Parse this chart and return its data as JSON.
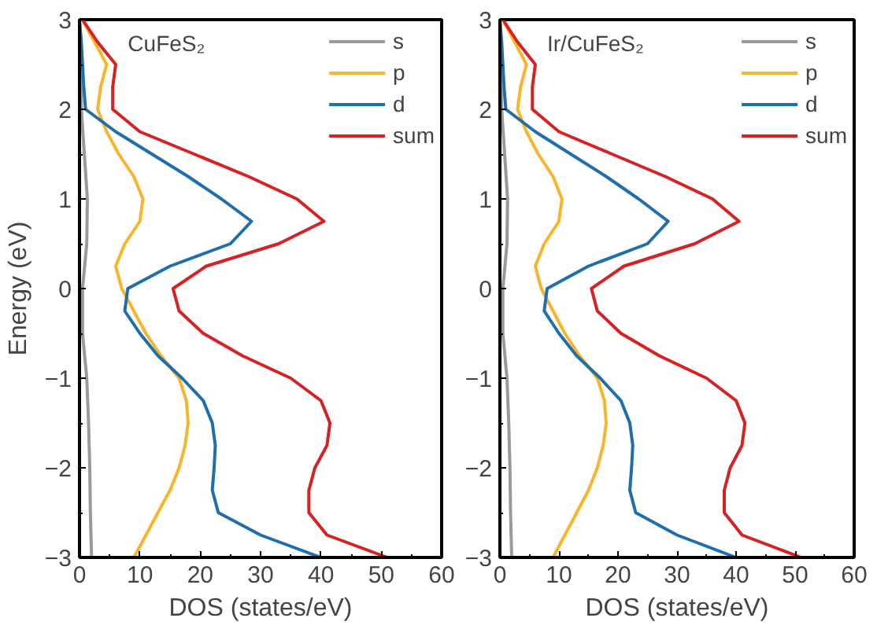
{
  "chart_data": [
    {
      "type": "line",
      "xlabel": "DOS (states/eV)",
      "ylabel": "Energy (eV)",
      "annotations": [
        "CuFeS₂"
      ],
      "xlim": [
        0,
        60
      ],
      "xticks": [
        0,
        10,
        20,
        30,
        40,
        50,
        60
      ],
      "ylim": [
        -3,
        3
      ],
      "yticks": [
        3,
        2,
        1,
        0,
        -1,
        -2,
        -3
      ],
      "legend": "top right",
      "grid": false,
      "series": [
        {
          "name": "s",
          "color": "#9a9a9a",
          "x": [
            0,
            0.3,
            0.8,
            1.3,
            1.2,
            0.5,
            0.5,
            1.2,
            1.5,
            1.7,
            1.8,
            2
          ],
          "values": [
            3,
            2,
            1.5,
            1,
            0.5,
            0,
            -0.5,
            -1,
            -1.5,
            -2,
            -2.5,
            -3
          ]
        },
        {
          "name": "p",
          "color": "#f7b52c",
          "x": [
            0.5,
            2.5,
            4.5,
            3.5,
            3,
            4.5,
            6.5,
            9,
            10.5,
            10,
            7.5,
            6,
            7,
            9,
            11,
            13.5,
            16.5,
            17.7,
            18,
            17.5,
            16.5,
            15,
            13,
            11,
            9
          ],
          "values": [
            3,
            2.75,
            2.5,
            2.25,
            2,
            1.75,
            1.5,
            1.25,
            1,
            0.75,
            0.5,
            0.25,
            0,
            -0.25,
            -0.5,
            -0.75,
            -1,
            -1.25,
            -1.5,
            -1.75,
            -2,
            -2.25,
            -2.5,
            -2.75,
            -3
          ]
        },
        {
          "name": "d",
          "color": "#1f6fad",
          "x": [
            0,
            0.3,
            0.5,
            0.7,
            1,
            6,
            12,
            18,
            23.5,
            28.5,
            25,
            15,
            8,
            7.5,
            10,
            13,
            17,
            20.5,
            22,
            22.5,
            22.3,
            22,
            23,
            30,
            40
          ],
          "values": [
            3,
            2.75,
            2.5,
            2.25,
            2,
            1.75,
            1.5,
            1.25,
            1,
            0.75,
            0.5,
            0.25,
            0,
            -0.25,
            -0.5,
            -0.75,
            -1,
            -1.25,
            -1.5,
            -1.75,
            -2,
            -2.25,
            -2.5,
            -2.75,
            -3
          ]
        },
        {
          "name": "sum",
          "color": "#d62222",
          "x": [
            0.5,
            3,
            6,
            5.5,
            5.5,
            10,
            19,
            28,
            36,
            40.5,
            33,
            21,
            15.5,
            16.5,
            20.5,
            27,
            35,
            40,
            41.5,
            41,
            39,
            38,
            38,
            41,
            51
          ],
          "values": [
            3,
            2.75,
            2.5,
            2.25,
            2,
            1.75,
            1.5,
            1.25,
            1,
            0.75,
            0.5,
            0.25,
            0,
            -0.25,
            -0.5,
            -0.75,
            -1,
            -1.25,
            -1.5,
            -1.75,
            -2,
            -2.25,
            -2.5,
            -2.75,
            -3
          ]
        }
      ]
    },
    {
      "type": "line",
      "xlabel": "DOS (states/eV)",
      "annotations": [
        "Ir/CuFeS₂"
      ],
      "xlim": [
        0,
        60
      ],
      "xticks": [
        0,
        10,
        20,
        30,
        40,
        50,
        60
      ],
      "ylim": [
        -3,
        3
      ],
      "yticks": [
        3,
        2,
        1,
        0,
        -1,
        -2,
        -3
      ],
      "legend": "top right",
      "grid": false,
      "series": [
        {
          "name": "s",
          "color": "#9a9a9a",
          "x": [
            0,
            0.3,
            0.8,
            1.3,
            1.2,
            0.5,
            0.5,
            1.2,
            1.5,
            1.7,
            1.8,
            2
          ],
          "values": [
            3,
            2,
            1.5,
            1,
            0.5,
            0,
            -0.5,
            -1,
            -1.5,
            -2,
            -2.5,
            -3
          ]
        },
        {
          "name": "p",
          "color": "#f7b52c",
          "x": [
            0.5,
            2.5,
            4.5,
            3.5,
            3,
            4.5,
            6.5,
            9,
            10.5,
            10,
            7.5,
            6,
            7,
            9,
            11,
            13.5,
            16.5,
            17.7,
            18,
            17.5,
            16.5,
            15,
            13,
            11,
            9
          ],
          "values": [
            3,
            2.75,
            2.5,
            2.25,
            2,
            1.75,
            1.5,
            1.25,
            1,
            0.75,
            0.5,
            0.25,
            0,
            -0.25,
            -0.5,
            -0.75,
            -1,
            -1.25,
            -1.5,
            -1.75,
            -2,
            -2.25,
            -2.5,
            -2.75,
            -3
          ]
        },
        {
          "name": "d",
          "color": "#1f6fad",
          "x": [
            0,
            0.3,
            0.5,
            0.7,
            1,
            6,
            12,
            18,
            23.5,
            28.5,
            25,
            15,
            8,
            7.5,
            10,
            13,
            17,
            20.5,
            22,
            22.5,
            22.3,
            22,
            23,
            30,
            40
          ],
          "values": [
            3,
            2.75,
            2.5,
            2.25,
            2,
            1.75,
            1.5,
            1.25,
            1,
            0.75,
            0.5,
            0.25,
            0,
            -0.25,
            -0.5,
            -0.75,
            -1,
            -1.25,
            -1.5,
            -1.75,
            -2,
            -2.25,
            -2.5,
            -2.75,
            -3
          ]
        },
        {
          "name": "sum",
          "color": "#d62222",
          "x": [
            0.5,
            3,
            6,
            5.5,
            5.5,
            10,
            19,
            28,
            36,
            40.5,
            33,
            21,
            15.5,
            16.5,
            20.5,
            27,
            35,
            40,
            41.5,
            41,
            39,
            38,
            38,
            41,
            51
          ],
          "values": [
            3,
            2.75,
            2.5,
            2.25,
            2,
            1.75,
            1.5,
            1.25,
            1,
            0.75,
            0.5,
            0.25,
            0,
            -0.25,
            -0.5,
            -0.75,
            -1,
            -1.25,
            -1.5,
            -1.75,
            -2,
            -2.25,
            -2.5,
            -2.75,
            -3
          ]
        }
      ]
    }
  ]
}
